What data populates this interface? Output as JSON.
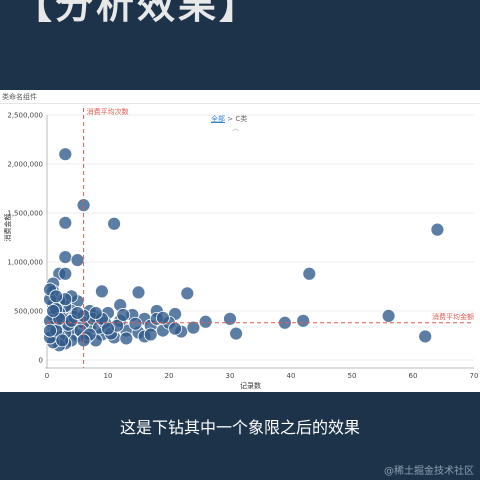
{
  "banner": {
    "title": "【分析效果】"
  },
  "widget": {
    "name": "类命名组件"
  },
  "breadcrumb": {
    "root": "全部",
    "separator": ">",
    "current": "C类"
  },
  "caption": "这是下钻其中一个象限之后的效果",
  "watermark": "@稀土掘金技术社区",
  "colors": {
    "point": "#2f5a8a",
    "avg_line": "#e05a4e",
    "background": "#1c3349"
  },
  "chart_data": {
    "type": "scatter",
    "xlabel": "记录数",
    "ylabel": "消费金额",
    "xlim": [
      0,
      70
    ],
    "ylim": [
      0,
      2500000
    ],
    "x_ticks": [
      0,
      10,
      20,
      30,
      40,
      50,
      60,
      70
    ],
    "y_ticks": [
      0,
      500000,
      1000000,
      1500000,
      2000000,
      2500000
    ],
    "x_tick_labels": [
      "0",
      "10",
      "20",
      "30",
      "40",
      "50",
      "60",
      "70"
    ],
    "y_tick_labels": [
      "0",
      "500,000",
      "1,000,000",
      "1,500,000",
      "2,000,000",
      "2,500,000"
    ],
    "reference_lines": [
      {
        "axis": "x",
        "value": 6,
        "label": "消费平均次数"
      },
      {
        "axis": "y",
        "value": 380000,
        "label": "消费平均金额"
      }
    ],
    "points": [
      [
        3,
        2100000
      ],
      [
        6,
        1580000
      ],
      [
        3,
        1400000
      ],
      [
        11,
        1390000
      ],
      [
        3,
        1050000
      ],
      [
        5,
        1020000
      ],
      [
        2,
        880000
      ],
      [
        3,
        880000
      ],
      [
        43,
        880000
      ],
      [
        64,
        1330000
      ],
      [
        9,
        700000
      ],
      [
        15,
        690000
      ],
      [
        23,
        680000
      ],
      [
        12,
        560000
      ],
      [
        56,
        450000
      ],
      [
        30,
        420000
      ],
      [
        42,
        400000
      ],
      [
        39,
        380000
      ],
      [
        26,
        390000
      ],
      [
        31,
        270000
      ],
      [
        62,
        240000
      ],
      [
        21,
        470000
      ],
      [
        19,
        300000
      ],
      [
        18,
        500000
      ],
      [
        22,
        290000
      ],
      [
        16,
        420000
      ],
      [
        20,
        380000
      ],
      [
        14,
        460000
      ],
      [
        13,
        300000
      ],
      [
        17,
        350000
      ],
      [
        10,
        480000
      ],
      [
        11,
        230000
      ],
      [
        8,
        440000
      ],
      [
        9,
        260000
      ],
      [
        7,
        500000
      ],
      [
        7,
        330000
      ],
      [
        8,
        200000
      ],
      [
        6,
        380000
      ],
      [
        5,
        600000
      ],
      [
        5,
        250000
      ],
      [
        4,
        500000
      ],
      [
        4,
        320000
      ],
      [
        4,
        650000
      ],
      [
        4,
        200000
      ],
      [
        3,
        550000
      ],
      [
        3,
        420000
      ],
      [
        3,
        280000
      ],
      [
        3,
        170000
      ],
      [
        2,
        600000
      ],
      [
        2,
        480000
      ],
      [
        2,
        350000
      ],
      [
        2,
        240000
      ],
      [
        2,
        150000
      ],
      [
        1,
        780000
      ],
      [
        1,
        700000
      ],
      [
        1,
        560000
      ],
      [
        1,
        450000
      ],
      [
        1,
        340000
      ],
      [
        1,
        250000
      ],
      [
        1,
        180000
      ],
      [
        0.5,
        620000
      ],
      [
        0.5,
        400000
      ],
      [
        0.5,
        230000
      ],
      [
        1.5,
        520000
      ],
      [
        1.5,
        300000
      ],
      [
        2.5,
        420000
      ],
      [
        2.5,
        200000
      ],
      [
        3.5,
        360000
      ],
      [
        4.5,
        440000
      ],
      [
        5.5,
        300000
      ],
      [
        6.5,
        230000
      ],
      [
        7.5,
        420000
      ],
      [
        8.5,
        330000
      ],
      [
        9.5,
        380000
      ],
      [
        10.5,
        270000
      ],
      [
        12,
        400000
      ],
      [
        13,
        220000
      ],
      [
        15,
        280000
      ],
      [
        16,
        240000
      ],
      [
        18,
        420000
      ],
      [
        24,
        330000
      ],
      [
        11.5,
        350000
      ],
      [
        14.5,
        370000
      ],
      [
        6,
        450000
      ],
      [
        4,
        400000
      ],
      [
        2,
        420000
      ],
      [
        1,
        500000
      ],
      [
        3,
        620000
      ],
      [
        5,
        480000
      ],
      [
        7,
        260000
      ],
      [
        9,
        420000
      ],
      [
        10,
        320000
      ],
      [
        12.5,
        460000
      ],
      [
        0.5,
        720000
      ],
      [
        0.5,
        300000
      ],
      [
        1.5,
        650000
      ],
      [
        6,
        200000
      ],
      [
        8,
        480000
      ],
      [
        17,
        260000
      ],
      [
        19,
        430000
      ],
      [
        21,
        320000
      ]
    ]
  }
}
